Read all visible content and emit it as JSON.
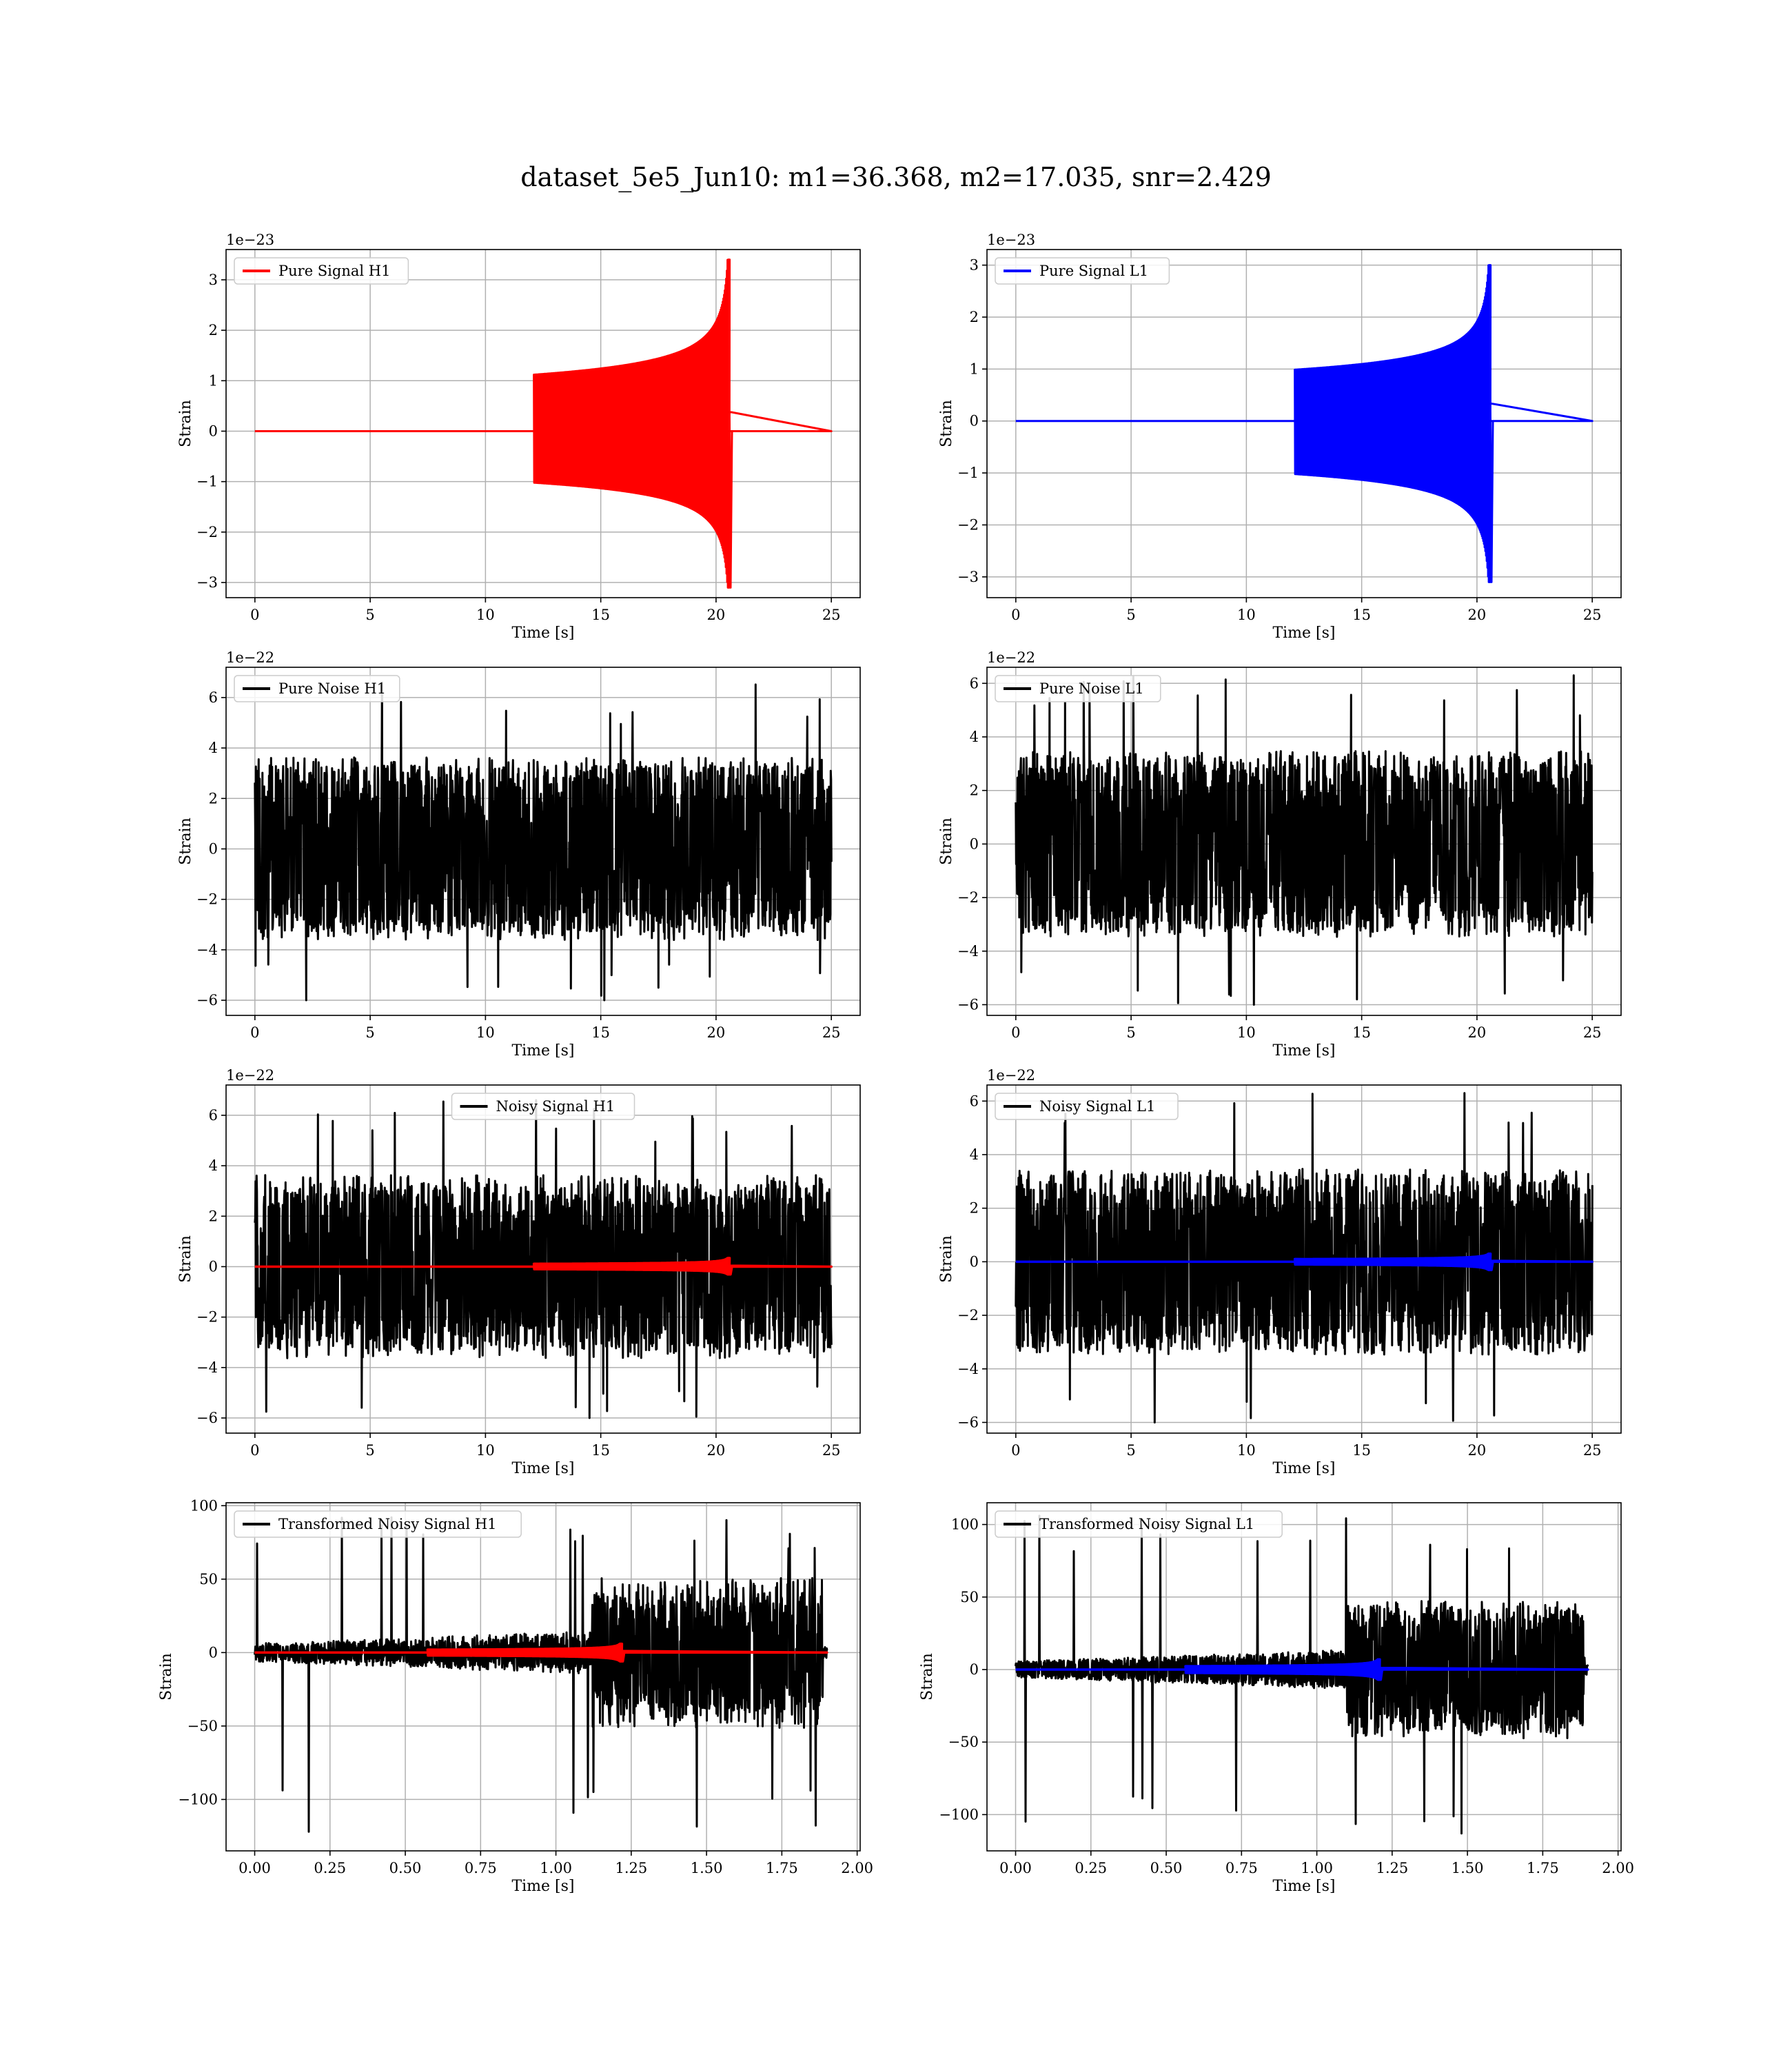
{
  "suptitle": "dataset_5e5_Jun10: m1=36.368, m2=17.035, snr=2.429",
  "colors": {
    "h1_signal": "#ff0000",
    "l1_signal": "#0000ff",
    "noise": "#000000",
    "grid": "#b0b0b0"
  },
  "chart_data": [
    {
      "type": "line",
      "xlabel": "Time [s]",
      "ylabel": "Strain",
      "offset_text": "1e−23",
      "xlim": [
        -1.25,
        26.25
      ],
      "ylim": [
        -3.3,
        3.6
      ],
      "xticks": [
        0,
        5,
        10,
        15,
        20,
        25
      ],
      "xtick_labels": [
        "0",
        "5",
        "10",
        "15",
        "20",
        "25"
      ],
      "yticks": [
        -3,
        -2,
        -1,
        0,
        1,
        2,
        3
      ],
      "ytick_labels": [
        "−3",
        "−2",
        "−1",
        "0",
        "1",
        "2",
        "3"
      ],
      "legend": {
        "position": "upper-left"
      },
      "series": [
        {
          "name": "Pure Signal H1",
          "color": "#ff0000",
          "kind": "chirp",
          "x_range": [
            0,
            25
          ],
          "merger_time": 20.6,
          "max": 3.4,
          "min": -3.1
        }
      ]
    },
    {
      "type": "line",
      "xlabel": "Time [s]",
      "ylabel": "Strain",
      "offset_text": "1e−23",
      "xlim": [
        -1.25,
        26.25
      ],
      "ylim": [
        -3.4,
        3.3
      ],
      "xticks": [
        0,
        5,
        10,
        15,
        20,
        25
      ],
      "xtick_labels": [
        "0",
        "5",
        "10",
        "15",
        "20",
        "25"
      ],
      "yticks": [
        -3,
        -2,
        -1,
        0,
        1,
        2,
        3
      ],
      "ytick_labels": [
        "−3",
        "−2",
        "−1",
        "0",
        "1",
        "2",
        "3"
      ],
      "legend": {
        "position": "upper-left"
      },
      "series": [
        {
          "name": "Pure Signal L1",
          "color": "#0000ff",
          "kind": "chirp",
          "x_range": [
            0,
            25
          ],
          "merger_time": 20.6,
          "max": 3.0,
          "min": -3.1
        }
      ]
    },
    {
      "type": "line",
      "xlabel": "Time [s]",
      "ylabel": "Strain",
      "offset_text": "1e−22",
      "xlim": [
        -1.25,
        26.25
      ],
      "ylim": [
        -6.6,
        7.2
      ],
      "xticks": [
        0,
        5,
        10,
        15,
        20,
        25
      ],
      "xtick_labels": [
        "0",
        "5",
        "10",
        "15",
        "20",
        "25"
      ],
      "yticks": [
        -6,
        -4,
        -2,
        0,
        2,
        4,
        6
      ],
      "ytick_labels": [
        "−6",
        "−4",
        "−2",
        "0",
        "2",
        "4",
        "6"
      ],
      "legend": {
        "position": "upper-left"
      },
      "series": [
        {
          "name": "Pure Noise H1",
          "color": "#000000",
          "kind": "noise",
          "x_range": [
            0,
            25
          ],
          "max": 6.6,
          "min": -6.0
        }
      ]
    },
    {
      "type": "line",
      "xlabel": "Time [s]",
      "ylabel": "Strain",
      "offset_text": "1e−22",
      "xlim": [
        -1.25,
        26.25
      ],
      "ylim": [
        -6.4,
        6.6
      ],
      "xticks": [
        0,
        5,
        10,
        15,
        20,
        25
      ],
      "xtick_labels": [
        "0",
        "5",
        "10",
        "15",
        "20",
        "25"
      ],
      "yticks": [
        -6,
        -4,
        -2,
        0,
        2,
        4,
        6
      ],
      "ytick_labels": [
        "−6",
        "−4",
        "−2",
        "0",
        "2",
        "4",
        "6"
      ],
      "legend": {
        "position": "upper-left"
      },
      "series": [
        {
          "name": "Pure Noise L1",
          "color": "#000000",
          "kind": "noise",
          "x_range": [
            0,
            25
          ],
          "max": 6.3,
          "min": -6.0
        }
      ]
    },
    {
      "type": "line",
      "xlabel": "Time [s]",
      "ylabel": "Strain",
      "offset_text": "1e−22",
      "xlim": [
        -1.25,
        26.25
      ],
      "ylim": [
        -6.6,
        7.2
      ],
      "xticks": [
        0,
        5,
        10,
        15,
        20,
        25
      ],
      "xtick_labels": [
        "0",
        "5",
        "10",
        "15",
        "20",
        "25"
      ],
      "yticks": [
        -6,
        -4,
        -2,
        0,
        2,
        4,
        6
      ],
      "ytick_labels": [
        "−6",
        "−4",
        "−2",
        "0",
        "2",
        "4",
        "6"
      ],
      "legend": {
        "position": "upper-center"
      },
      "series": [
        {
          "name": "Noisy Signal H1",
          "color": "#000000",
          "kind": "noise",
          "x_range": [
            0,
            25
          ],
          "max": 6.6,
          "min": -6.0
        },
        {
          "name": "",
          "color": "#ff0000",
          "kind": "chirp",
          "x_range": [
            0,
            25
          ],
          "merger_time": 20.6,
          "max": 0.34,
          "min": -0.31
        }
      ]
    },
    {
      "type": "line",
      "xlabel": "Time [s]",
      "ylabel": "Strain",
      "offset_text": "1e−22",
      "xlim": [
        -1.25,
        26.25
      ],
      "ylim": [
        -6.4,
        6.6
      ],
      "xticks": [
        0,
        5,
        10,
        15,
        20,
        25
      ],
      "xtick_labels": [
        "0",
        "5",
        "10",
        "15",
        "20",
        "25"
      ],
      "yticks": [
        -6,
        -4,
        -2,
        0,
        2,
        4,
        6
      ],
      "ytick_labels": [
        "−6",
        "−4",
        "−2",
        "0",
        "2",
        "4",
        "6"
      ],
      "legend": {
        "position": "upper-left"
      },
      "series": [
        {
          "name": "Noisy Signal L1",
          "color": "#000000",
          "kind": "noise",
          "x_range": [
            0,
            25
          ],
          "max": 6.3,
          "min": -6.0
        },
        {
          "name": "",
          "color": "#0000ff",
          "kind": "chirp",
          "x_range": [
            0,
            25
          ],
          "merger_time": 20.6,
          "max": 0.3,
          "min": -0.31
        }
      ]
    },
    {
      "type": "line",
      "xlabel": "Time [s]",
      "ylabel": "Strain",
      "offset_text": "",
      "xlim": [
        -0.095,
        2.01
      ],
      "ylim": [
        -135,
        102
      ],
      "xticks": [
        0,
        0.25,
        0.5,
        0.75,
        1.0,
        1.25,
        1.5,
        1.75,
        2.0
      ],
      "xtick_labels": [
        "0.00",
        "0.25",
        "0.50",
        "0.75",
        "1.00",
        "1.25",
        "1.50",
        "1.75",
        "2.00"
      ],
      "yticks": [
        -100,
        -50,
        0,
        50,
        100
      ],
      "ytick_labels": [
        "−100",
        "−50",
        "0",
        "50",
        "100"
      ],
      "legend": {
        "position": "upper-left"
      },
      "series": [
        {
          "name": "Transformed Noisy Signal H1",
          "color": "#000000",
          "kind": "whitened",
          "x_range": [
            0,
            1.9
          ],
          "transition_time": 1.12,
          "max": 92,
          "min": -122
        },
        {
          "name": "",
          "color": "#ff0000",
          "kind": "chirp",
          "x_range": [
            0,
            1.9
          ],
          "merger_time": 1.22,
          "max": 6,
          "min": -6
        }
      ]
    },
    {
      "type": "line",
      "xlabel": "Time [s]",
      "ylabel": "Strain",
      "offset_text": "",
      "xlim": [
        -0.095,
        2.01
      ],
      "ylim": [
        -125,
        115
      ],
      "xticks": [
        0,
        0.25,
        0.5,
        0.75,
        1.0,
        1.25,
        1.5,
        1.75,
        2.0
      ],
      "xtick_labels": [
        "0.00",
        "0.25",
        "0.50",
        "0.75",
        "1.00",
        "1.25",
        "1.50",
        "1.75",
        "2.00"
      ],
      "yticks": [
        -100,
        -50,
        0,
        50,
        100
      ],
      "ytick_labels": [
        "−100",
        "−50",
        "0",
        "50",
        "100"
      ],
      "legend": {
        "position": "upper-left"
      },
      "series": [
        {
          "name": "Transformed Noisy Signal L1",
          "color": "#000000",
          "kind": "whitened",
          "x_range": [
            0,
            1.9
          ],
          "transition_time": 1.1,
          "max": 106,
          "min": -113
        },
        {
          "name": "",
          "color": "#0000ff",
          "kind": "chirp",
          "x_range": [
            0,
            1.9
          ],
          "merger_time": 1.21,
          "max": 7,
          "min": -7
        }
      ]
    }
  ]
}
